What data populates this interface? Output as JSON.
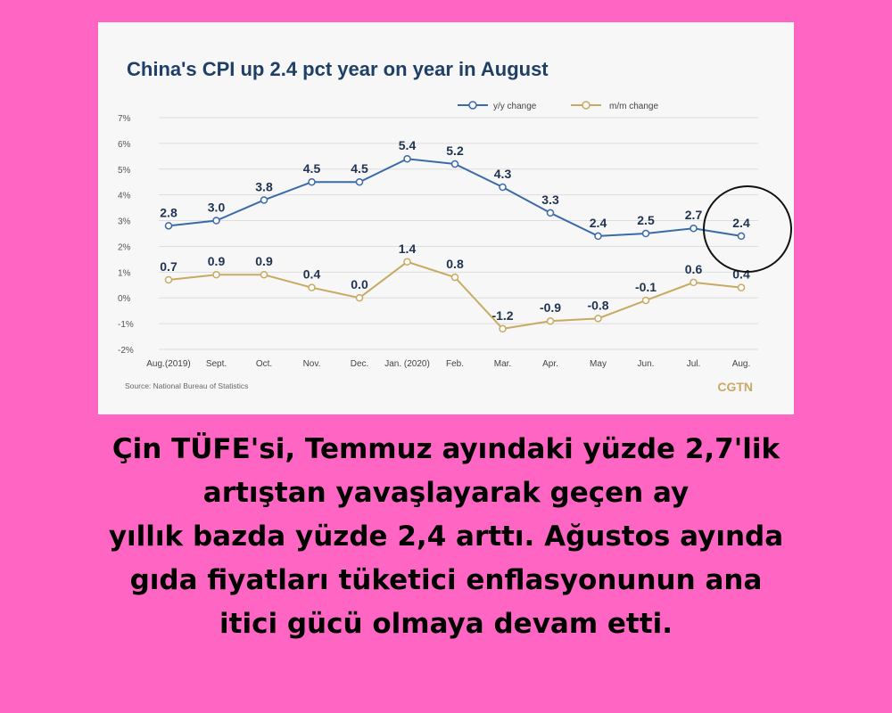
{
  "chart_data": {
    "type": "line",
    "title": "China's CPI up 2.4 pct year on year in August",
    "categories": [
      "Aug.(2019)",
      "Sept.",
      "Oct.",
      "Nov.",
      "Dec.",
      "Jan. (2020)",
      "Feb.",
      "Mar.",
      "Apr.",
      "May",
      "Jun.",
      "Jul.",
      "Aug."
    ],
    "series": [
      {
        "name": "y/y change",
        "color": "#3a6aa8",
        "values": [
          2.8,
          3.0,
          3.8,
          4.5,
          4.5,
          5.4,
          5.2,
          4.3,
          3.3,
          2.4,
          2.5,
          2.7,
          2.4
        ],
        "labels": [
          "2.8",
          "3.0",
          "3.8",
          "4.5",
          "4.5",
          "5.4",
          "5.2",
          "4.3",
          "3.3",
          "2.4",
          "2.5",
          "2.7",
          "2.4"
        ]
      },
      {
        "name": "m/m change",
        "color": "#c8aa62",
        "values": [
          0.7,
          0.9,
          0.9,
          0.4,
          0.0,
          1.4,
          0.8,
          -1.2,
          -0.9,
          -0.8,
          -0.1,
          0.6,
          0.4
        ],
        "labels": [
          "0.7",
          "0.9",
          "0.9",
          "0.4",
          "0.0",
          "1.4",
          "0.8",
          "-1.2",
          "-0.9",
          "-0.8",
          "-0.1",
          "0.6",
          "0.4"
        ]
      }
    ],
    "ylim": [
      -2,
      7
    ],
    "yticks": [
      "7%",
      "6%",
      "5%",
      "4%",
      "3%",
      "2%",
      "1%",
      "0%",
      "-1%",
      "-2%"
    ],
    "ytick_values": [
      7,
      6,
      5,
      4,
      3,
      2,
      1,
      0,
      -1,
      -2
    ],
    "grid": true,
    "legend": "top-right",
    "source": "Source: National Bureau of Statistics",
    "brand": "CGTN"
  },
  "caption": {
    "lines": [
      "Çin TÜFE'si, Temmuz ayındaki yüzde 2,7'lik",
      "artıştan yavaşlayarak geçen ay",
      "yıllık bazda yüzde 2,4 arttı. Ağustos ayında",
      "gıda fiyatları tüketici enflasyonunun ana",
      "itici gücü olmaya devam etti."
    ]
  },
  "colors": {
    "background": "#ff66c4",
    "card": "#f7f7f7",
    "highlight_circle": "#111111"
  }
}
